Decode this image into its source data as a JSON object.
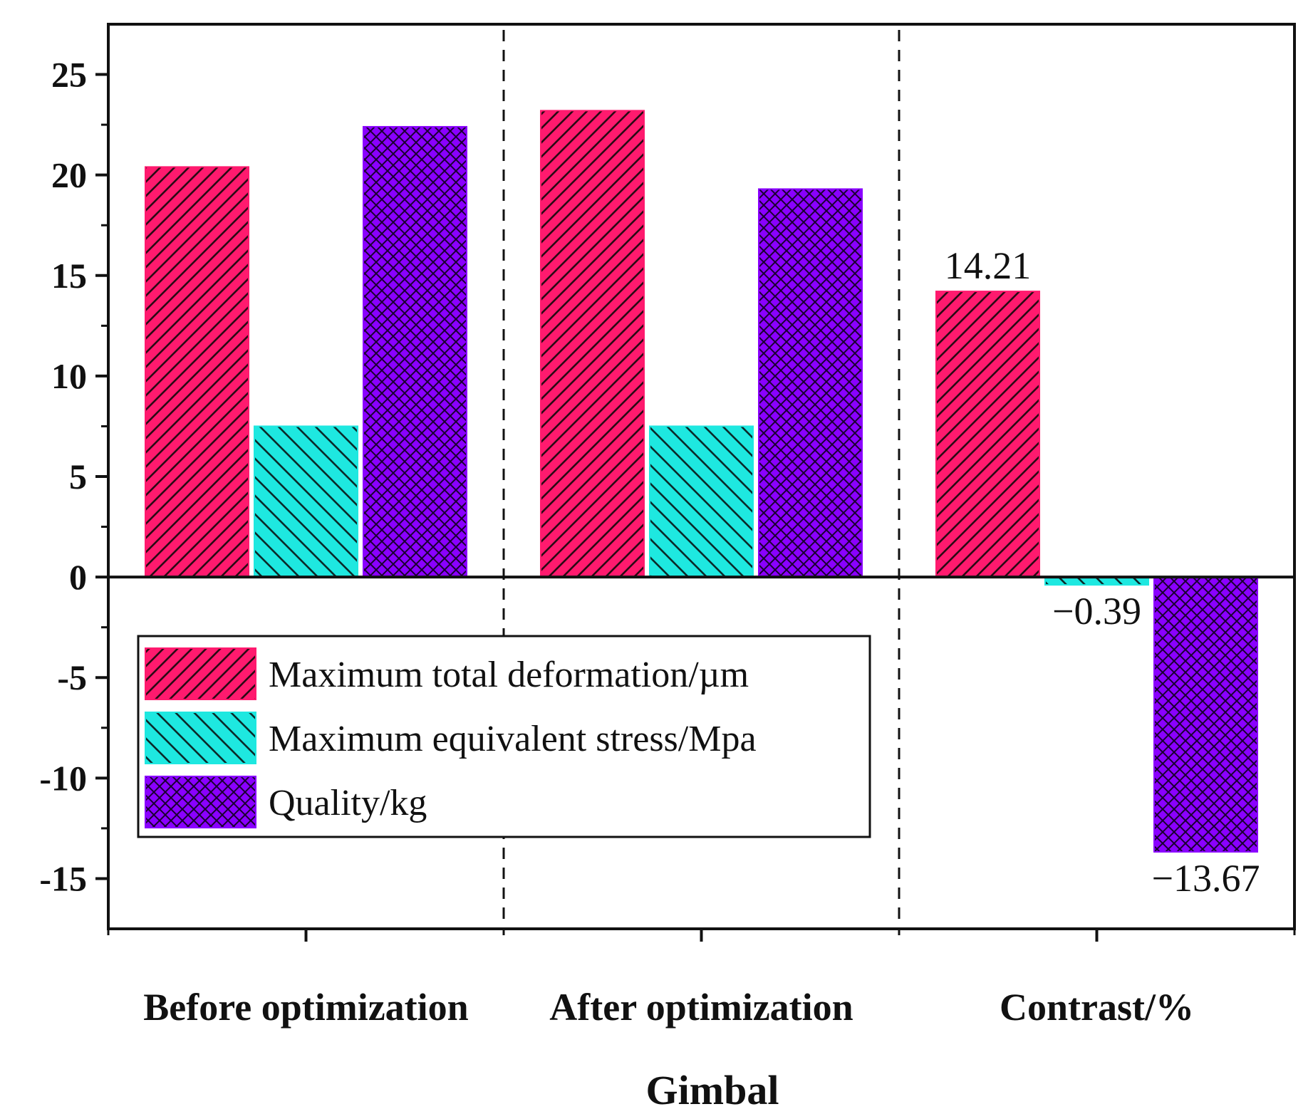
{
  "chart_data": {
    "type": "bar",
    "title": "",
    "xlabel": "Gimbal",
    "ylabel": "",
    "ylim": [
      -17.5,
      27.5
    ],
    "yticks": [
      -15,
      -10,
      -5,
      0,
      5,
      10,
      15,
      20,
      25
    ],
    "categories": [
      "Before optimization",
      "After optimization",
      "Contrast/%"
    ],
    "series": [
      {
        "name": "Maximum total deformation/µm",
        "values": [
          20.4,
          23.2,
          14.21
        ],
        "color": "#ff1a6e",
        "pattern": "diag-hatch"
      },
      {
        "name": "Maximum equivalent stress/Mpa",
        "values": [
          7.5,
          7.5,
          -0.39
        ],
        "color": "#1ee8e0",
        "pattern": "back-diag-hatch"
      },
      {
        "name": "Quality/kg",
        "values": [
          22.4,
          19.3,
          -13.67
        ],
        "color": "#8a00ff",
        "pattern": "cross-hatch"
      }
    ],
    "data_labels": [
      {
        "series": 0,
        "category": 2,
        "text": "14.21"
      },
      {
        "series": 1,
        "category": 2,
        "text": "−0.39"
      },
      {
        "series": 2,
        "category": 2,
        "text": "−13.67"
      }
    ],
    "group_separators": "dashed",
    "legend": {
      "position": "bottom-left"
    },
    "grid": false
  }
}
